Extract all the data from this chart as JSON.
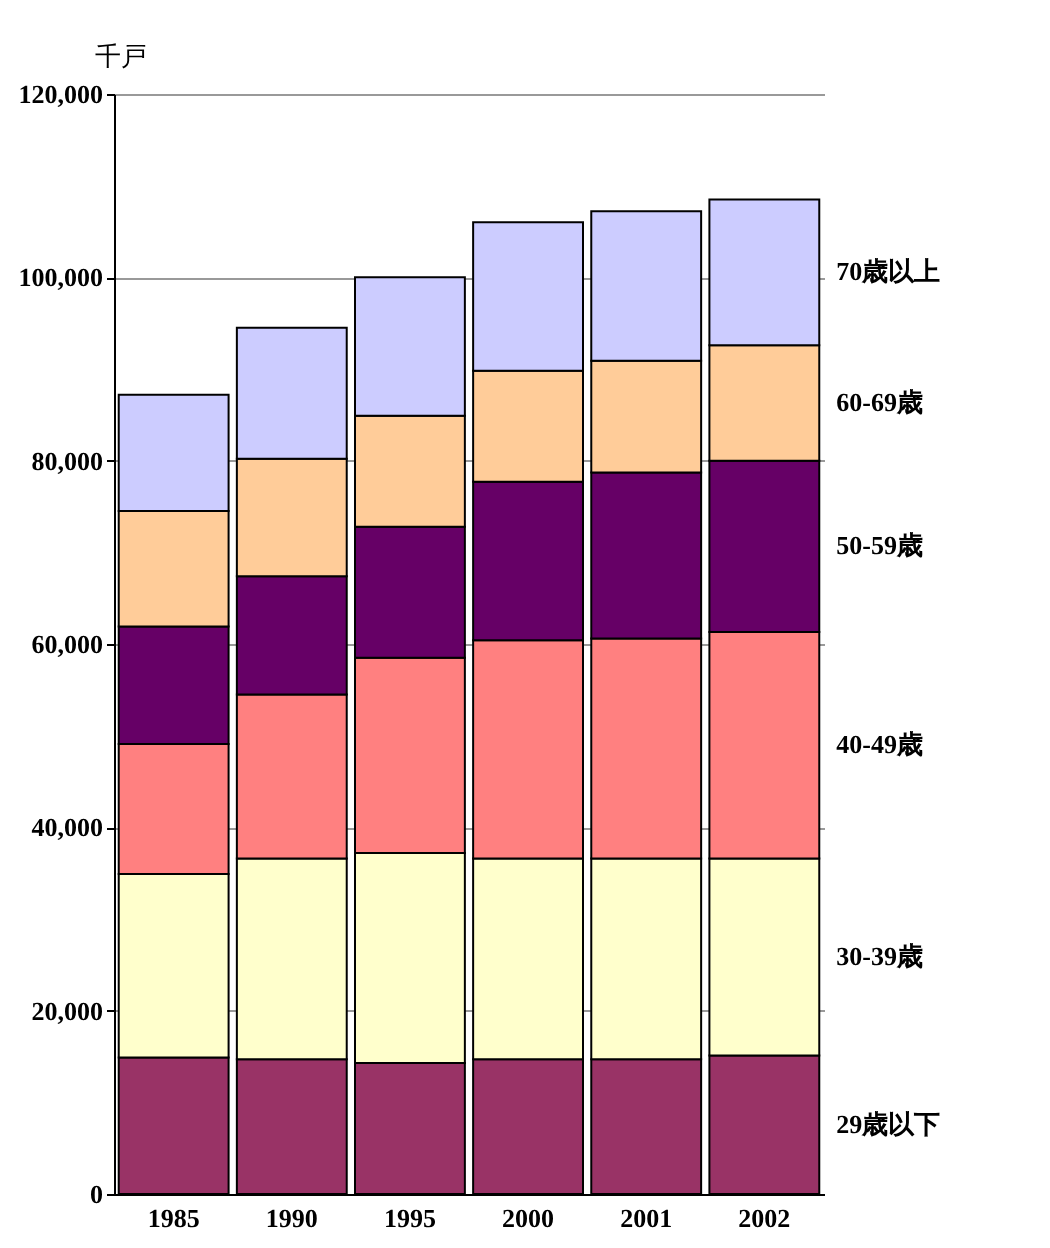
{
  "chart_data": {
    "type": "bar",
    "stacked": true,
    "ylabel": "千戸",
    "categories": [
      "1985",
      "1990",
      "1995",
      "2000",
      "2001",
      "2002"
    ],
    "series": [
      {
        "name": "29歳以下",
        "color": "#993366",
        "values": [
          14900,
          14700,
          14300,
          14700,
          14700,
          15100
        ]
      },
      {
        "name": "30-39歳",
        "color": "#ffffcc",
        "values": [
          20000,
          21900,
          22900,
          21900,
          21900,
          21500
        ]
      },
      {
        "name": "40-49歳",
        "color": "#ff8080",
        "values": [
          14200,
          17900,
          21300,
          23800,
          24000,
          24700
        ]
      },
      {
        "name": "50-59歳",
        "color": "#660066",
        "values": [
          12800,
          12900,
          14300,
          17300,
          18100,
          18700
        ]
      },
      {
        "name": "60-69歳",
        "color": "#ffcc99",
        "values": [
          12600,
          12800,
          12100,
          12100,
          12200,
          12600
        ]
      },
      {
        "name": "70歳以上",
        "color": "#ccccff",
        "values": [
          12700,
          14300,
          15100,
          16200,
          16300,
          15900
        ]
      }
    ],
    "ylim": [
      0,
      120000
    ],
    "yticks": [
      {
        "value": 0,
        "label": "0"
      },
      {
        "value": 20000,
        "label": "20,000"
      },
      {
        "value": 40000,
        "label": "40,000"
      },
      {
        "value": 60000,
        "label": "60,000"
      },
      {
        "value": 80000,
        "label": "80,000"
      },
      {
        "value": 100000,
        "label": "100,000"
      },
      {
        "value": 120000,
        "label": "120,000"
      }
    ],
    "grid": "y",
    "legend": "right"
  }
}
